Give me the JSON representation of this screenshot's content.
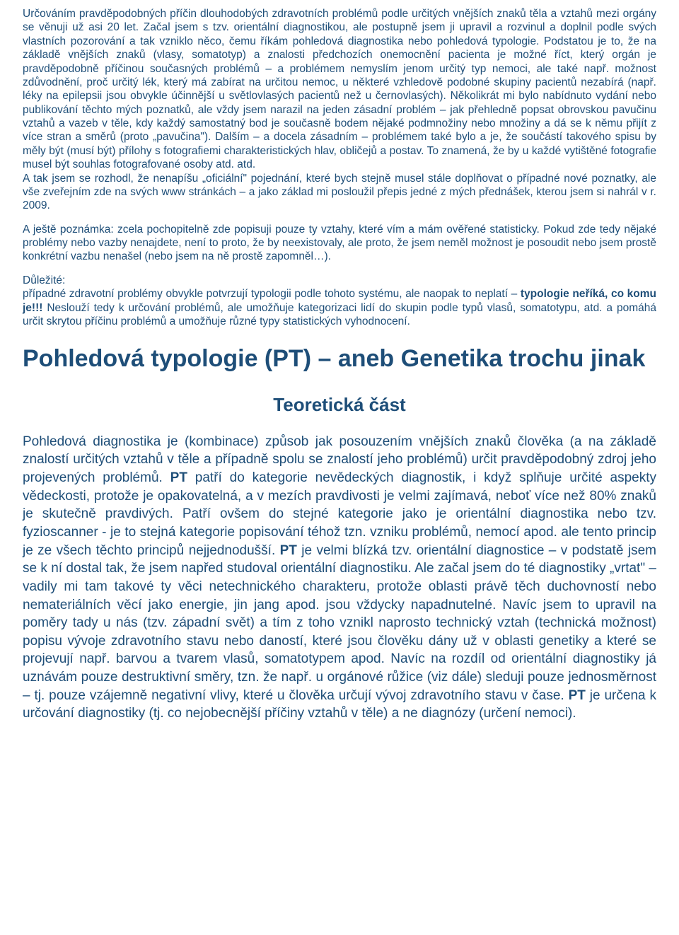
{
  "colors": {
    "text": "#1e4e78",
    "background": "#ffffff"
  },
  "typography": {
    "font_family": "Arial",
    "para_fontsize_pt": 12,
    "title_fontsize_pt": 26,
    "subtitle_fontsize_pt": 20,
    "body_fontsize_pt": 14
  },
  "para1_a": "Určováním pravděpodobných příčin dlouhodobých zdravotních problémů podle určitých vnějších znaků těla a vztahů mezi orgány se věnuji už asi 20 let. Začal jsem s tzv. orientální diagnostikou, ale postupně jsem ji upravil a rozvinul a doplnil podle svých vlastních pozorování a tak vzniklo něco, čemu říkám pohledová diagnostika nebo pohledová typologie. Podstatou je to, že na základě vnějších znaků (vlasy, somatotyp) a znalosti předchozích onemocnění pacienta je možné říct, který orgán je pravděpodobně příčinou současných problémů – a problémem nemyslím jenom určitý typ nemoci, ale také např. možnost zdůvodnění, proč určitý lék, který má zabírat na určitou nemoc, u některé vzhledově podobné skupiny pacientů nezabírá (např. léky na epilepsii jsou obvykle účinnější u světlovlasých pacientů než u černovlasých). Několikrát mi bylo nabídnuto vydání nebo publikování těchto mých poznatků, ale vždy jsem narazil na jeden zásadní problém – jak přehledně popsat obrovskou pavučinu vztahů a vazeb v těle, kdy každý samostatný bod je současně bodem nějaké podmnožiny nebo množiny a dá se k němu přijít z více stran a směrů (proto „pavučina\"). Dalším – a docela zásadním – problémem také bylo a je, že součástí takového spisu by měly být (musí být) přílohy s fotografiemi charakteristických hlav, obličejů a postav. To znamená, že by u každé vytištěné fotografie musel být souhlas fotografované osoby atd. atd.",
  "para1_b": "A tak jsem se rozhodl, že nenapíšu „oficiální\" pojednání, které bych stejně musel stále doplňovat o případné nové poznatky, ale vše zveřejním zde na svých www stránkách – a jako základ mi posloužil přepis jedné z mých přednášek, kterou jsem si nahrál v r. 2009.",
  "para2": "A ještě poznámka: zcela pochopitelně zde popisuji pouze ty vztahy, které vím a mám ověřené statisticky. Pokud zde tedy nějaké problémy nebo vazby nenajdete, není to proto, že by neexistovaly, ale proto, že jsem neměl možnost je posoudit nebo jsem prostě konkrétní vazbu nenašel (nebo jsem na ně prostě zapomněl…).",
  "para3_a": "Důležité:",
  "para3_b": "případné zdravotní problémy obvykle potvrzují typologii podle tohoto systému, ale naopak to neplatí – ",
  "para3_bold": "typologie neříká, co komu je!!!",
  "para3_c": " Neslouží tedy k určování problémů, ale umožňuje kategorizaci lidí do skupin podle typů vlasů, somatotypu, atd. a pomáhá určit skrytou příčinu problémů a umožňuje různé typy statistických vyhodnocení.",
  "title": "Pohledová typologie (PT) – aneb Genetika trochu jinak",
  "subtitle": "Teoretická část",
  "body_a": "Pohledová diagnostika je (kombinace) způsob jak posouzením vnějších znaků člověka (a na základě znalostí určitých vztahů v těle a případně spolu se znalostí jeho problémů) určit pravděpodobný zdroj jeho projevených problémů. ",
  "body_bold1": "PT",
  "body_b": " patří do kategorie nevědeckých diagnostik, i když splňuje určité aspekty vědeckosti, protože je opakovatelná, a v mezích pravdivosti je velmi zajímavá, neboť více než 80% znaků je skutečně pravdivých. Patří ovšem do stejné kategorie jako je orientální diagnostika nebo tzv. fyzioscanner  - je to stejná kategorie popisování téhož tzn. vzniku problémů, nemocí apod. ale tento princip je ze všech těchto principů nejjednodušší. ",
  "body_bold2": "PT",
  "body_c": " je velmi blízká tzv. orientální diagnostice – v podstatě jsem se k ní dostal tak, že jsem napřed studoval orientální diagnostiku. Ale začal jsem do té diagnostiky „vrtat\" – vadily mi tam takové ty věci netechnického charakteru, protože oblasti právě těch duchovností nebo nemateriálních věcí jako energie, jin jang apod. jsou vždycky napadnutelné. Navíc jsem to upravil na poměry tady u nás (tzv. západní svět) a tím z toho vznikl naprosto technický vztah (technická možnost) popisu vývoje zdravotního stavu nebo daností, které jsou člověku dány už v oblasti genetiky a které se projevují např. barvou a tvarem vlasů, somatotypem apod. Navíc na rozdíl od orientální diagnostiky já uznávám pouze destruktivní směry, tzn. že např. u orgánové růžice (viz dále) sleduji pouze jednosměrnost – tj. pouze vzájemně negativní vlivy, které u člověka určují vývoj zdravotního stavu v čase. ",
  "body_bold3": "PT",
  "body_d": " je určena k určování diagnostiky (tj. co nejobecnější příčiny vztahů v těle) a ne diagnózy (určení nemoci)."
}
